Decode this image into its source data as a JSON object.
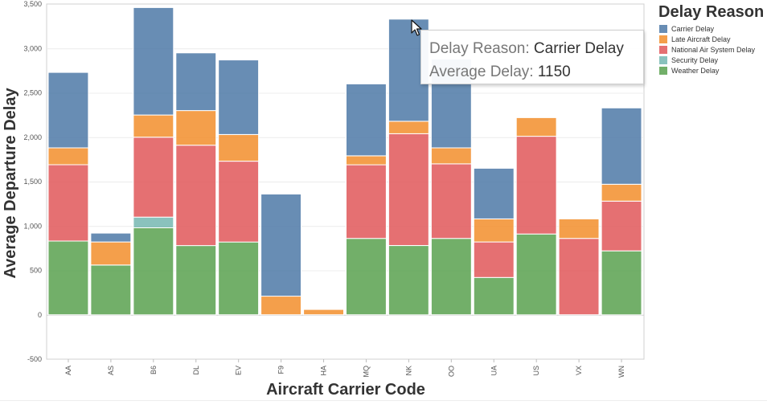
{
  "chart_data": {
    "type": "bar",
    "stacked": true,
    "categories": [
      "AA",
      "AS",
      "B6",
      "DL",
      "EV",
      "F9",
      "HA",
      "MQ",
      "NK",
      "OO",
      "UA",
      "US",
      "VX",
      "WN"
    ],
    "series": [
      {
        "name": "Weather Delay",
        "color": "#59a14f",
        "values": [
          830,
          560,
          980,
          780,
          820,
          0,
          0,
          860,
          780,
          860,
          420,
          910,
          0,
          720
        ]
      },
      {
        "name": "Security Delay",
        "color": "#76b7b2",
        "values": [
          0,
          0,
          120,
          0,
          0,
          0,
          0,
          0,
          0,
          0,
          0,
          0,
          0,
          0
        ]
      },
      {
        "name": "National Air System Delay",
        "color": "#e15759",
        "values": [
          860,
          0,
          900,
          1130,
          910,
          0,
          0,
          830,
          1260,
          840,
          400,
          1100,
          860,
          560
        ]
      },
      {
        "name": "Late Aircraft Delay",
        "color": "#f28e2b",
        "values": [
          190,
          260,
          250,
          390,
          300,
          210,
          60,
          100,
          140,
          180,
          260,
          210,
          220,
          190
        ]
      },
      {
        "name": "Carrier Delay",
        "color": "#4e79a7",
        "values": [
          850,
          100,
          1210,
          650,
          840,
          1150,
          0,
          810,
          1150,
          1000,
          570,
          0,
          0,
          860
        ]
      }
    ],
    "xlabel": "Aircraft Carrier Code",
    "ylabel": "Average Departure Delay",
    "ylim": [
      -500,
      3500
    ],
    "yticks": [
      -500,
      0,
      500,
      1000,
      1500,
      2000,
      2500,
      3000,
      3500
    ],
    "ytick_labels": [
      "-500",
      "0",
      "500",
      "1,000",
      "1,500",
      "2,000",
      "2,500",
      "3,000",
      "3,500"
    ],
    "grid": true,
    "legend": {
      "title": "Delay Reason",
      "position": "right",
      "entries": [
        "Carrier Delay",
        "Late Aircraft Delay",
        "National Air System Delay",
        "Security Delay",
        "Weather Delay"
      ]
    }
  },
  "legend_colors": {
    "Carrier Delay": "#4e79a7",
    "Late Aircraft Delay": "#f28e2b",
    "National Air System Delay": "#e15759",
    "Security Delay": "#76b7b2",
    "Weather Delay": "#59a14f"
  },
  "tooltip": {
    "key1": "Delay Reason:",
    "val1": "Carrier Delay",
    "key2": "Average Delay:",
    "val2": "1150"
  },
  "cursor_icon": "mouse-pointer-icon"
}
